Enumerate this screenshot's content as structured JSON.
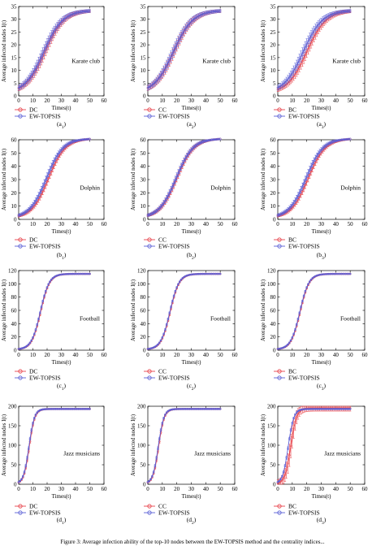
{
  "figure": {
    "caption_text": "Figure 3: Average infection ability of the top-10 nodes between the EW-TOPSIS method and the centrality indices..."
  },
  "chart_data": [
    {
      "id": "a1",
      "type": "line",
      "panel_label": "(a1)",
      "label_main": "(a",
      "label_sub": "1",
      "label_end": ")",
      "inner_label": "Karate club",
      "xlabel": "Times(t)",
      "ylabel": "Average infected nodes I(t)",
      "xlim": [
        0,
        60
      ],
      "ylim": [
        0,
        35
      ],
      "xticks": [
        0,
        10,
        20,
        30,
        40,
        50,
        60
      ],
      "yticks": [
        0,
        5,
        10,
        15,
        20,
        25,
        30,
        35
      ],
      "grid": false,
      "legend_position": "bottom-left",
      "series": [
        {
          "name": "DC",
          "color": "#e8434a",
          "marker": "circle",
          "role": "compare",
          "y0": 1,
          "ymax": 33.5,
          "k": 0.15,
          "t0": 18.5,
          "err": 2.2
        },
        {
          "name": "EW-TOPSIS",
          "color": "#5a5fd6",
          "marker": "circle",
          "role": "proposed",
          "y0": 1,
          "ymax": 33.5,
          "k": 0.15,
          "t0": 17.5,
          "err": 2.2
        }
      ]
    },
    {
      "id": "a2",
      "type": "line",
      "panel_label": "(a2)",
      "label_main": "(a",
      "label_sub": "2",
      "label_end": ")",
      "inner_label": "Karate club",
      "xlabel": "Times(t)",
      "ylabel": "Average infected nodes I(t)",
      "xlim": [
        0,
        60
      ],
      "ylim": [
        0,
        35
      ],
      "xticks": [
        0,
        10,
        20,
        30,
        40,
        50,
        60
      ],
      "yticks": [
        0,
        5,
        10,
        15,
        20,
        25,
        30,
        35
      ],
      "grid": false,
      "legend_position": "bottom-left",
      "series": [
        {
          "name": "CC",
          "color": "#e8434a",
          "marker": "circle",
          "role": "compare",
          "y0": 1,
          "ymax": 33.5,
          "k": 0.15,
          "t0": 18,
          "err": 2.2
        },
        {
          "name": "EW-TOPSIS",
          "color": "#5a5fd6",
          "marker": "circle",
          "role": "proposed",
          "y0": 1,
          "ymax": 33.5,
          "k": 0.15,
          "t0": 17.5,
          "err": 2.2
        }
      ]
    },
    {
      "id": "a3",
      "type": "line",
      "panel_label": "(a3)",
      "label_main": "(a",
      "label_sub": "3",
      "label_end": ")",
      "inner_label": "Karate club",
      "xlabel": "Times(t)",
      "ylabel": "Average infected nodes I(t)",
      "xlim": [
        0,
        60
      ],
      "ylim": [
        0,
        35
      ],
      "xticks": [
        0,
        10,
        20,
        30,
        40,
        50,
        60
      ],
      "yticks": [
        0,
        5,
        10,
        15,
        20,
        25,
        30,
        35
      ],
      "grid": false,
      "legend_position": "bottom-left",
      "series": [
        {
          "name": "BC",
          "color": "#e8434a",
          "marker": "circle",
          "role": "compare",
          "y0": 1,
          "ymax": 33.5,
          "k": 0.15,
          "t0": 20,
          "err": 2.2
        },
        {
          "name": "EW-TOPSIS",
          "color": "#5a5fd6",
          "marker": "circle",
          "role": "proposed",
          "y0": 1,
          "ymax": 33.5,
          "k": 0.15,
          "t0": 17.5,
          "err": 2.2
        }
      ]
    },
    {
      "id": "b1",
      "type": "line",
      "panel_label": "(b1)",
      "label_main": "(b",
      "label_sub": "1",
      "label_end": ")",
      "inner_label": "Dolphin",
      "xlabel": "Times(t)",
      "ylabel": "Average infected nodes I(t)",
      "xlim": [
        0,
        60
      ],
      "ylim": [
        0,
        60
      ],
      "xticks": [
        0,
        10,
        20,
        30,
        40,
        50,
        60
      ],
      "yticks": [
        0,
        10,
        20,
        30,
        40,
        50,
        60
      ],
      "grid": false,
      "legend_position": "bottom-left",
      "series": [
        {
          "name": "DC",
          "color": "#e8434a",
          "marker": "circle",
          "role": "compare",
          "y0": 1,
          "ymax": 61,
          "k": 0.17,
          "t0": 21,
          "err": 2.8
        },
        {
          "name": "EW-TOPSIS",
          "color": "#5a5fd6",
          "marker": "circle",
          "role": "proposed",
          "y0": 1,
          "ymax": 61,
          "k": 0.17,
          "t0": 19.5,
          "err": 2.8
        }
      ]
    },
    {
      "id": "b2",
      "type": "line",
      "panel_label": "(b2)",
      "label_main": "(b",
      "label_sub": "2",
      "label_end": ")",
      "inner_label": "Dolphin",
      "xlabel": "Times(t)",
      "ylabel": "Average infected nodes I(t)",
      "xlim": [
        0,
        60
      ],
      "ylim": [
        0,
        60
      ],
      "xticks": [
        0,
        10,
        20,
        30,
        40,
        50,
        60
      ],
      "yticks": [
        0,
        10,
        20,
        30,
        40,
        50,
        60
      ],
      "grid": false,
      "legend_position": "bottom-left",
      "series": [
        {
          "name": "CC",
          "color": "#e8434a",
          "marker": "circle",
          "role": "compare",
          "y0": 1,
          "ymax": 61,
          "k": 0.17,
          "t0": 20,
          "err": 2.8
        },
        {
          "name": "EW-TOPSIS",
          "color": "#5a5fd6",
          "marker": "circle",
          "role": "proposed",
          "y0": 1,
          "ymax": 61,
          "k": 0.17,
          "t0": 19.5,
          "err": 2.8
        }
      ]
    },
    {
      "id": "b3",
      "type": "line",
      "panel_label": "(b3)",
      "label_main": "(b",
      "label_sub": "3",
      "label_end": ")",
      "inner_label": "Dolphin",
      "xlabel": "Times(t)",
      "ylabel": "Average infected nodes I(t)",
      "xlim": [
        0,
        60
      ],
      "ylim": [
        0,
        60
      ],
      "xticks": [
        0,
        10,
        20,
        30,
        40,
        50,
        60
      ],
      "yticks": [
        0,
        10,
        20,
        30,
        40,
        50,
        60
      ],
      "grid": false,
      "legend_position": "bottom-left",
      "series": [
        {
          "name": "BC",
          "color": "#e8434a",
          "marker": "circle",
          "role": "compare",
          "y0": 1,
          "ymax": 61,
          "k": 0.17,
          "t0": 21,
          "err": 2.8
        },
        {
          "name": "EW-TOPSIS",
          "color": "#5a5fd6",
          "marker": "circle",
          "role": "proposed",
          "y0": 1,
          "ymax": 61,
          "k": 0.17,
          "t0": 19.5,
          "err": 2.8
        }
      ]
    },
    {
      "id": "c1",
      "type": "line",
      "panel_label": "(c1)",
      "label_main": "(c",
      "label_sub": "1",
      "label_end": ")",
      "inner_label": "Football",
      "xlabel": "Times(t)",
      "ylabel": "Average infected nodes I(t)",
      "xlim": [
        0,
        60
      ],
      "ylim": [
        0,
        120
      ],
      "xticks": [
        0,
        10,
        20,
        30,
        40,
        50,
        60
      ],
      "yticks": [
        0,
        20,
        40,
        60,
        80,
        100,
        120
      ],
      "grid": false,
      "legend_position": "bottom-left",
      "series": [
        {
          "name": "DC",
          "color": "#e8434a",
          "marker": "circle",
          "role": "compare",
          "y0": 1,
          "ymax": 115,
          "k": 0.32,
          "t0": 15.5,
          "err": 1.5
        },
        {
          "name": "EW-TOPSIS",
          "color": "#5a5fd6",
          "marker": "circle",
          "role": "proposed",
          "y0": 1,
          "ymax": 115,
          "k": 0.32,
          "t0": 15.2,
          "err": 1.5
        }
      ]
    },
    {
      "id": "c2",
      "type": "line",
      "panel_label": "(c2)",
      "label_main": "(c",
      "label_sub": "2",
      "label_end": ")",
      "inner_label": "Football",
      "xlabel": "Times(t)",
      "ylabel": "Average infected nodes I(t)",
      "xlim": [
        0,
        60
      ],
      "ylim": [
        0,
        120
      ],
      "xticks": [
        0,
        10,
        20,
        30,
        40,
        50,
        60
      ],
      "yticks": [
        0,
        20,
        40,
        60,
        80,
        100,
        120
      ],
      "grid": false,
      "legend_position": "bottom-left",
      "series": [
        {
          "name": "CC",
          "color": "#e8434a",
          "marker": "circle",
          "role": "compare",
          "y0": 1,
          "ymax": 115,
          "k": 0.32,
          "t0": 15.5,
          "err": 1.5
        },
        {
          "name": "EW-TOPSIS",
          "color": "#5a5fd6",
          "marker": "circle",
          "role": "proposed",
          "y0": 1,
          "ymax": 115,
          "k": 0.32,
          "t0": 15.2,
          "err": 1.5
        }
      ]
    },
    {
      "id": "c3",
      "type": "line",
      "panel_label": "(c3)",
      "label_main": "(c",
      "label_sub": "3",
      "label_end": ")",
      "inner_label": "Football",
      "xlabel": "Times(t)",
      "ylabel": "Average infected nodes I(t)",
      "xlim": [
        0,
        60
      ],
      "ylim": [
        0,
        120
      ],
      "xticks": [
        0,
        10,
        20,
        30,
        40,
        50,
        60
      ],
      "yticks": [
        0,
        20,
        40,
        60,
        80,
        100,
        120
      ],
      "grid": false,
      "legend_position": "bottom-left",
      "series": [
        {
          "name": "BC",
          "color": "#e8434a",
          "marker": "circle",
          "role": "compare",
          "y0": 1,
          "ymax": 115,
          "k": 0.32,
          "t0": 15.5,
          "err": 1.5
        },
        {
          "name": "EW-TOPSIS",
          "color": "#5a5fd6",
          "marker": "circle",
          "role": "proposed",
          "y0": 1,
          "ymax": 115,
          "k": 0.32,
          "t0": 15.2,
          "err": 1.5
        }
      ]
    },
    {
      "id": "d1",
      "type": "line",
      "panel_label": "(d1)",
      "label_main": "(d",
      "label_sub": "1",
      "label_end": ")",
      "inner_label": "Jazz musicians",
      "xlabel": "Times(t)",
      "ylabel": "Average infected nodes I(t)",
      "xlim": [
        0,
        60
      ],
      "ylim": [
        0,
        200
      ],
      "xticks": [
        0,
        10,
        20,
        30,
        40,
        50,
        60
      ],
      "yticks": [
        0,
        50,
        100,
        150,
        200
      ],
      "grid": false,
      "legend_position": "bottom-left",
      "series": [
        {
          "name": "DC",
          "color": "#e8434a",
          "marker": "circle",
          "role": "compare",
          "y0": 1,
          "ymax": 193,
          "k": 0.52,
          "t0": 7.5,
          "err": 4
        },
        {
          "name": "EW-TOPSIS",
          "color": "#5a5fd6",
          "marker": "circle",
          "role": "proposed",
          "y0": 1,
          "ymax": 193,
          "k": 0.52,
          "t0": 7.2,
          "err": 4
        }
      ]
    },
    {
      "id": "d2",
      "type": "line",
      "panel_label": "(d2)",
      "label_main": "(d",
      "label_sub": "2",
      "label_end": ")",
      "inner_label": "Jazz musicians",
      "xlabel": "Times(t)",
      "ylabel": "Average infected nodes I(t)",
      "xlim": [
        0,
        60
      ],
      "ylim": [
        0,
        200
      ],
      "xticks": [
        0,
        10,
        20,
        30,
        40,
        50,
        60
      ],
      "yticks": [
        0,
        50,
        100,
        150,
        200
      ],
      "grid": false,
      "legend_position": "bottom-left",
      "series": [
        {
          "name": "CC",
          "color": "#e8434a",
          "marker": "circle",
          "role": "compare",
          "y0": 1,
          "ymax": 193,
          "k": 0.52,
          "t0": 7.5,
          "err": 4
        },
        {
          "name": "EW-TOPSIS",
          "color": "#5a5fd6",
          "marker": "circle",
          "role": "proposed",
          "y0": 1,
          "ymax": 193,
          "k": 0.52,
          "t0": 7.2,
          "err": 4
        }
      ]
    },
    {
      "id": "d3",
      "type": "line",
      "panel_label": "(d3)",
      "label_main": "(d",
      "label_sub": "3",
      "label_end": ")",
      "inner_label": "Jazz musicians",
      "xlabel": "Times(t)",
      "ylabel": "Average infected nodes I(t)",
      "xlim": [
        0,
        60
      ],
      "ylim": [
        0,
        200
      ],
      "xticks": [
        0,
        10,
        20,
        30,
        40,
        50,
        60
      ],
      "yticks": [
        0,
        50,
        100,
        150,
        200
      ],
      "grid": false,
      "legend_position": "bottom-left",
      "series": [
        {
          "name": "BC",
          "color": "#e8434a",
          "marker": "circle",
          "role": "compare",
          "y0": 1,
          "ymax": 195,
          "k": 0.5,
          "t0": 9,
          "err": 30
        },
        {
          "name": "EW-TOPSIS",
          "color": "#5a5fd6",
          "marker": "circle",
          "role": "proposed",
          "y0": 1,
          "ymax": 193,
          "k": 0.52,
          "t0": 7.2,
          "err": 4
        }
      ]
    }
  ]
}
